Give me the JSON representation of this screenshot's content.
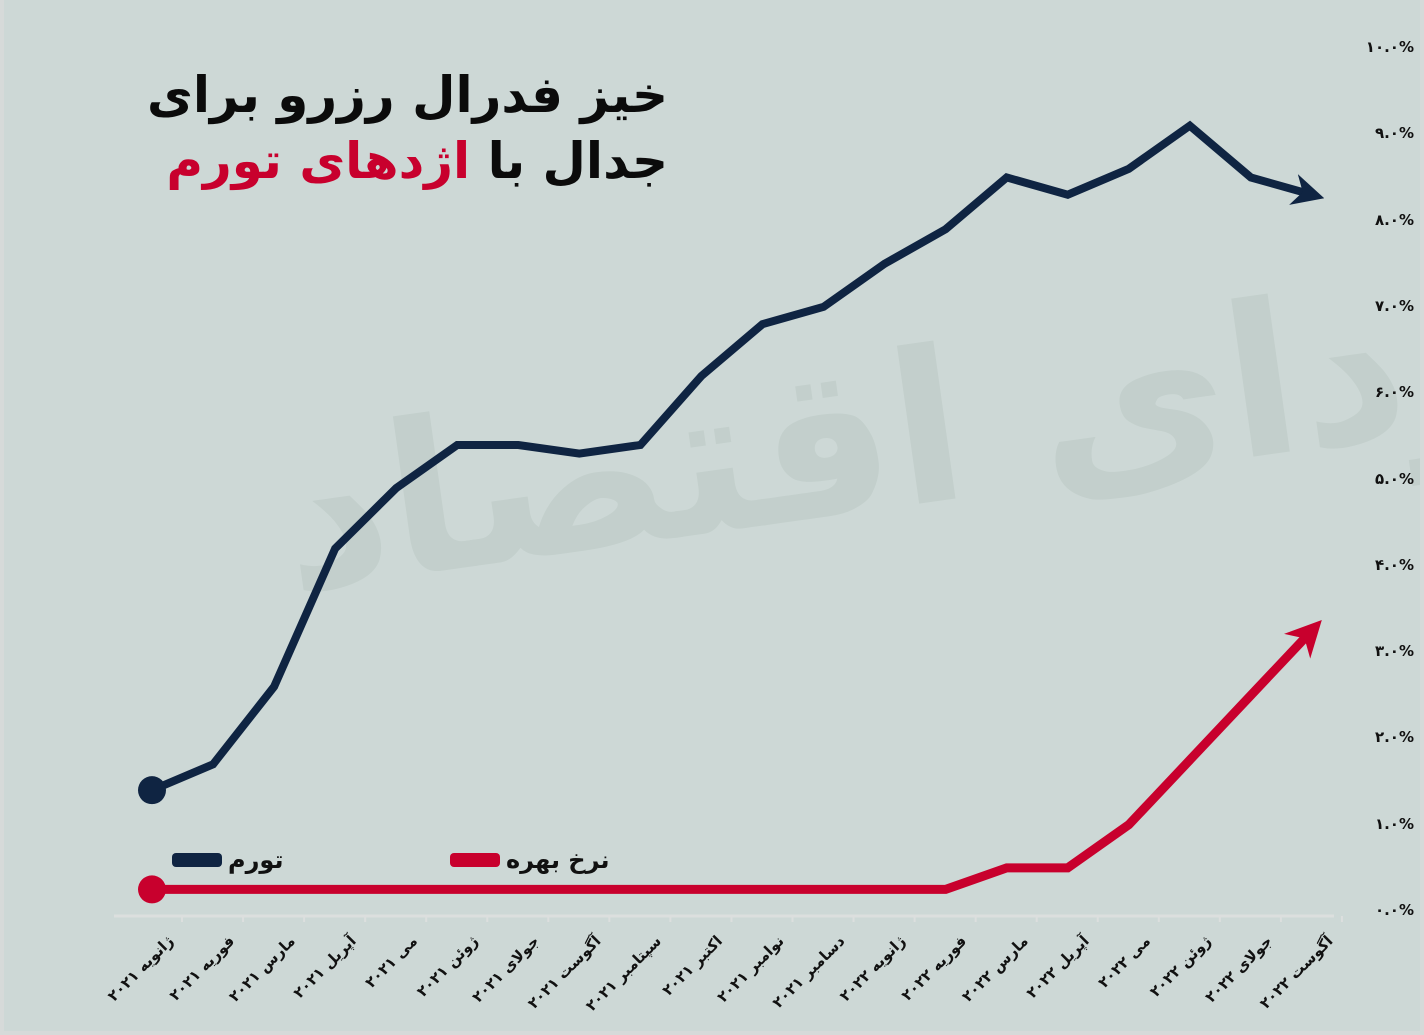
{
  "title": {
    "line1": "خیز فدرال رزرو برای",
    "line2_prefix": "جدال با",
    "line2_accent": "اژدهای تورم"
  },
  "watermark": "فردای اقتصاد",
  "legend": [
    {
      "label": "تورم",
      "color": "#0f2442"
    },
    {
      "label": "نرخ بهره",
      "color": "#c8002d"
    }
  ],
  "y_axis_labels": [
    "۱۰.۰%",
    "۹.۰%",
    "۸.۰%",
    "۷.۰%",
    "۶.۰%",
    "۵.۰%",
    "۴.۰%",
    "۳.۰%",
    "۲.۰%",
    "۱.۰%",
    "۰.۰%"
  ],
  "x_axis_labels": [
    "ژانویه ۲۰۲۱",
    "فوریه ۲۰۲۱",
    "مارس ۲۰۲۱",
    "آپریل ۲۰۲۱",
    "می ۲۰۲۱",
    "ژوئن ۲۰۲۱",
    "جولای ۲۰۲۱",
    "آگوست ۲۰۲۱",
    "سپتامبر ۲۰۲۱",
    "اکتبر ۲۰۲۱",
    "نوامبر ۲۰۲۱",
    "دسامبر ۲۰۲۱",
    "ژانویه ۲۰۲۲",
    "فوریه ۲۰۲۲",
    "مارس ۲۰۲۲",
    "آپریل ۲۰۲۲",
    "می ۲۰۲۲",
    "ژوئن ۲۰۲۲",
    "جولای ۲۰۲۲",
    "آگوست ۲۰۲۲"
  ],
  "colors": {
    "background": "#cdd8d6",
    "inflation": "#0f2442",
    "interest": "#c8002d",
    "accent": "#c8002d"
  },
  "chart_data": {
    "type": "line",
    "title": "خیز فدرال رزرو برای جدال با اژدهای تورم",
    "xlabel": "",
    "ylabel": "",
    "ylim": [
      0,
      10
    ],
    "y_ticks": [
      0,
      1,
      2,
      3,
      4,
      5,
      6,
      7,
      8,
      9,
      10
    ],
    "y_tick_format": "percent",
    "grid": false,
    "legend_position": "bottom-left",
    "categories": [
      "ژانویه ۲۰۲۱",
      "فوریه ۲۰۲۱",
      "مارس ۲۰۲۱",
      "آپریل ۲۰۲۱",
      "می ۲۰۲۱",
      "ژوئن ۲۰۲۱",
      "جولای ۲۰۲۱",
      "آگوست ۲۰۲۱",
      "سپتامبر ۲۰۲۱",
      "اکتبر ۲۰۲۱",
      "نوامبر ۲۰۲۱",
      "دسامبر ۲۰۲۱",
      "ژانویه ۲۰۲۲",
      "فوریه ۲۰۲۲",
      "مارس ۲۰۲۲",
      "آپریل ۲۰۲۲",
      "می ۲۰۲۲",
      "ژوئن ۲۰۲۲",
      "جولای ۲۰۲۲",
      "آگوست ۲۰۲۲"
    ],
    "series": [
      {
        "name": "تورم",
        "color": "#0f2442",
        "values": [
          1.4,
          1.7,
          2.6,
          4.2,
          4.9,
          5.4,
          5.4,
          5.3,
          5.4,
          6.2,
          6.8,
          7.0,
          7.5,
          7.9,
          8.5,
          8.3,
          8.6,
          9.1,
          8.5,
          8.3
        ]
      },
      {
        "name": "نرخ بهره",
        "color": "#c8002d",
        "values": [
          0.25,
          0.25,
          0.25,
          0.25,
          0.25,
          0.25,
          0.25,
          0.25,
          0.25,
          0.25,
          0.25,
          0.25,
          0.25,
          0.25,
          0.5,
          0.5,
          1.0,
          1.75,
          2.5,
          3.25
        ]
      }
    ]
  }
}
